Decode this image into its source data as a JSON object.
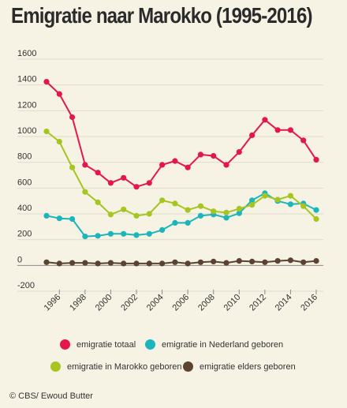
{
  "title": "Emigratie naar Marokko (1995-2016)",
  "footer": "© CBS/ Ewoud Butter",
  "chart_data": {
    "type": "line",
    "title": "Emigratie naar Marokko (1995-2016)",
    "xlabel": "",
    "ylabel": "",
    "x": [
      1995,
      1996,
      1997,
      1998,
      1999,
      2000,
      2001,
      2002,
      2003,
      2004,
      2005,
      2006,
      2007,
      2008,
      2009,
      2010,
      2011,
      2012,
      2013,
      2014,
      2015,
      2016
    ],
    "x_ticks": [
      1996,
      1998,
      2000,
      2002,
      2004,
      2006,
      2008,
      2010,
      2012,
      2014,
      2016
    ],
    "y_ticks": [
      -200,
      0,
      200,
      400,
      600,
      800,
      1000,
      1200,
      1400,
      1600
    ],
    "ylim": [
      -200,
      1600
    ],
    "grid": "horizontal",
    "legend_position": "bottom",
    "series": [
      {
        "name": "emigratie totaal",
        "color": "#e3174c",
        "values": [
          1425,
          1330,
          1150,
          780,
          720,
          640,
          680,
          610,
          640,
          780,
          810,
          760,
          860,
          850,
          780,
          880,
          1010,
          1130,
          1050,
          1050,
          970,
          820
        ]
      },
      {
        "name": "emigratie in Nederland geboren",
        "color": "#1ab6bc",
        "values": [
          385,
          365,
          360,
          225,
          230,
          245,
          245,
          235,
          245,
          275,
          330,
          330,
          385,
          395,
          370,
          405,
          505,
          560,
          500,
          475,
          480,
          430
        ]
      },
      {
        "name": "emigratie in Marokko geboren",
        "color": "#a7c520",
        "values": [
          1040,
          960,
          760,
          570,
          490,
          395,
          435,
          385,
          400,
          505,
          480,
          430,
          460,
          420,
          410,
          440,
          470,
          540,
          510,
          540,
          460,
          360
        ]
      },
      {
        "name": "emigratie elders geboren",
        "color": "#5a4330",
        "values": [
          25,
          15,
          20,
          20,
          15,
          20,
          15,
          15,
          15,
          15,
          25,
          15,
          25,
          30,
          20,
          35,
          30,
          25,
          35,
          40,
          25,
          35
        ]
      }
    ]
  },
  "legend": [
    {
      "label": "emigratie totaal",
      "color": "#e3174c"
    },
    {
      "label": "emigratie in Nederland geboren",
      "color": "#1ab6bc"
    },
    {
      "label": "emigratie in Marokko geboren",
      "color": "#a7c520"
    },
    {
      "label": "emigratie elders geboren",
      "color": "#5a4330"
    }
  ]
}
